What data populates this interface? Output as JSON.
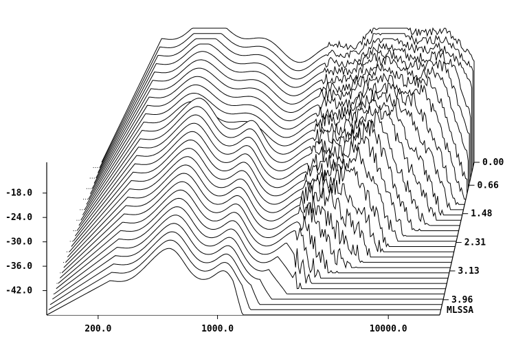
{
  "chart_data": {
    "type": "line",
    "title": "",
    "subtitle": "",
    "plot_style": "cumulative spectral decay (waterfall)",
    "grid": false,
    "legend": "none",
    "watermark": "MLSSA",
    "xlabel": "",
    "ylabel": "",
    "zlabel": "",
    "x_scale": "log",
    "x_ticks": [
      "200.0",
      "1000.0",
      "10000.0"
    ],
    "x_tick_values": [
      200,
      1000,
      10000
    ],
    "xlim": [
      100,
      20000
    ],
    "y_ticks": [
      "-18.0",
      "-24.0",
      "-30.0",
      "-36.0",
      "-42.0"
    ],
    "y_tick_values": [
      -18,
      -24,
      -30,
      -36,
      -42
    ],
    "ylim": [
      -48,
      -15
    ],
    "time_ticks": [
      "0.00",
      "0.66",
      "1.48",
      "2.31",
      "3.13",
      "3.96"
    ],
    "time_tick_values": [
      0.0,
      0.66,
      1.48,
      2.31,
      3.13,
      3.96
    ],
    "time_range": [
      0.0,
      4.4
    ],
    "slice_count": 30
  }
}
